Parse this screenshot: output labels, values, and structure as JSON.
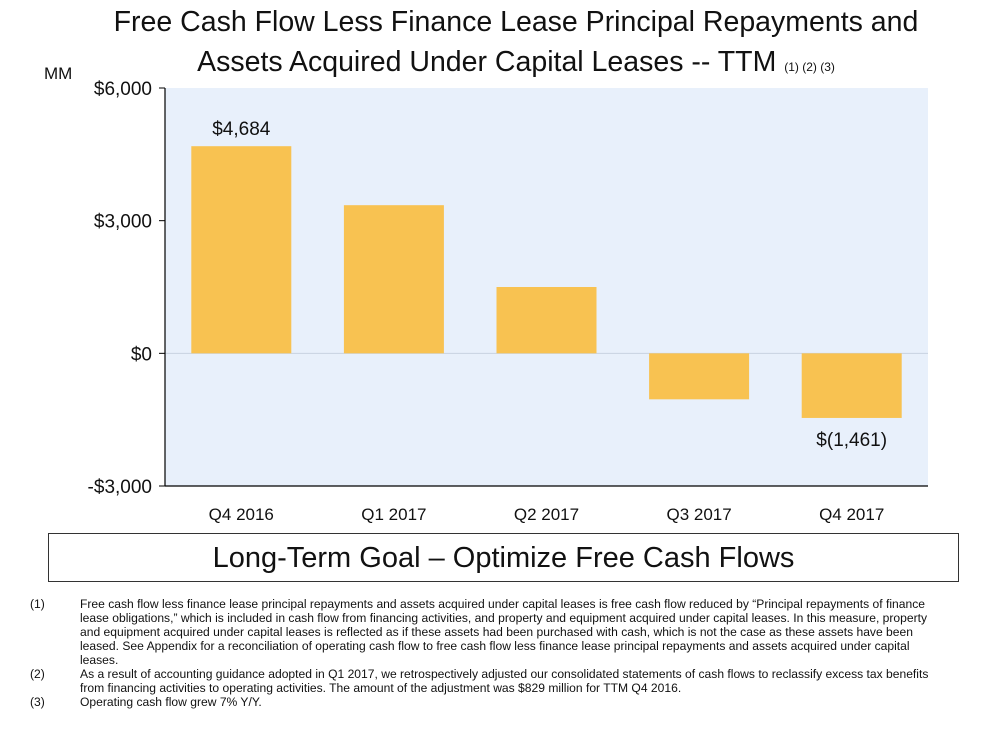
{
  "title_line1": "Free Cash Flow Less Finance Lease Principal Repayments and",
  "title_line2": "Assets Acquired Under Capital Leases -- TTM",
  "title_refs": "(1) (2) (3)",
  "units_label": "MM",
  "goal_text": "Long-Term Goal – Optimize Free Cash Flows",
  "colors": {
    "bar": "#f8c251",
    "plot_bg": "#e8f0fb",
    "axis": "#000000"
  },
  "chart_data": {
    "type": "bar",
    "title": "Free Cash Flow Less Finance Lease Principal Repayments and Assets Acquired Under Capital Leases -- TTM",
    "xlabel": "",
    "ylabel": "MM",
    "categories": [
      "Q4 2016",
      "Q1 2017",
      "Q2 2017",
      "Q3 2017",
      "Q4 2017"
    ],
    "values": [
      4684,
      3350,
      1500,
      -1040,
      -1461
    ],
    "data_labels": [
      "$4,684",
      "",
      "",
      "",
      "$(1,461)"
    ],
    "ylim": [
      -3000,
      6000
    ],
    "yticks": [
      -3000,
      0,
      3000,
      6000
    ],
    "ytick_labels": [
      "-$3,000",
      "$0",
      "$3,000",
      "$6,000"
    ],
    "grid": false
  },
  "footnotes": [
    {
      "num": "(1)",
      "text": "Free cash flow less finance lease principal repayments and assets acquired under capital leases is free cash flow reduced by “Principal repayments of finance lease obligations,” which is included in cash flow from financing activities, and property and equipment acquired under capital leases. In this measure, property and equipment acquired under capital leases is reflected as if these assets had been purchased with cash, which is not the case as these assets have been leased. See Appendix for a reconciliation of operating cash flow to free cash flow less finance lease principal repayments and assets acquired under capital leases."
    },
    {
      "num": "(2)",
      "text": "As a result of accounting guidance adopted in Q1 2017, we retrospectively adjusted our consolidated statements of cash flows to reclassify excess tax benefits from financing activities to operating activities. The amount of the adjustment was $829 million for TTM Q4 2016."
    },
    {
      "num": "(3)",
      "text": "Operating cash flow grew 7% Y/Y."
    }
  ]
}
